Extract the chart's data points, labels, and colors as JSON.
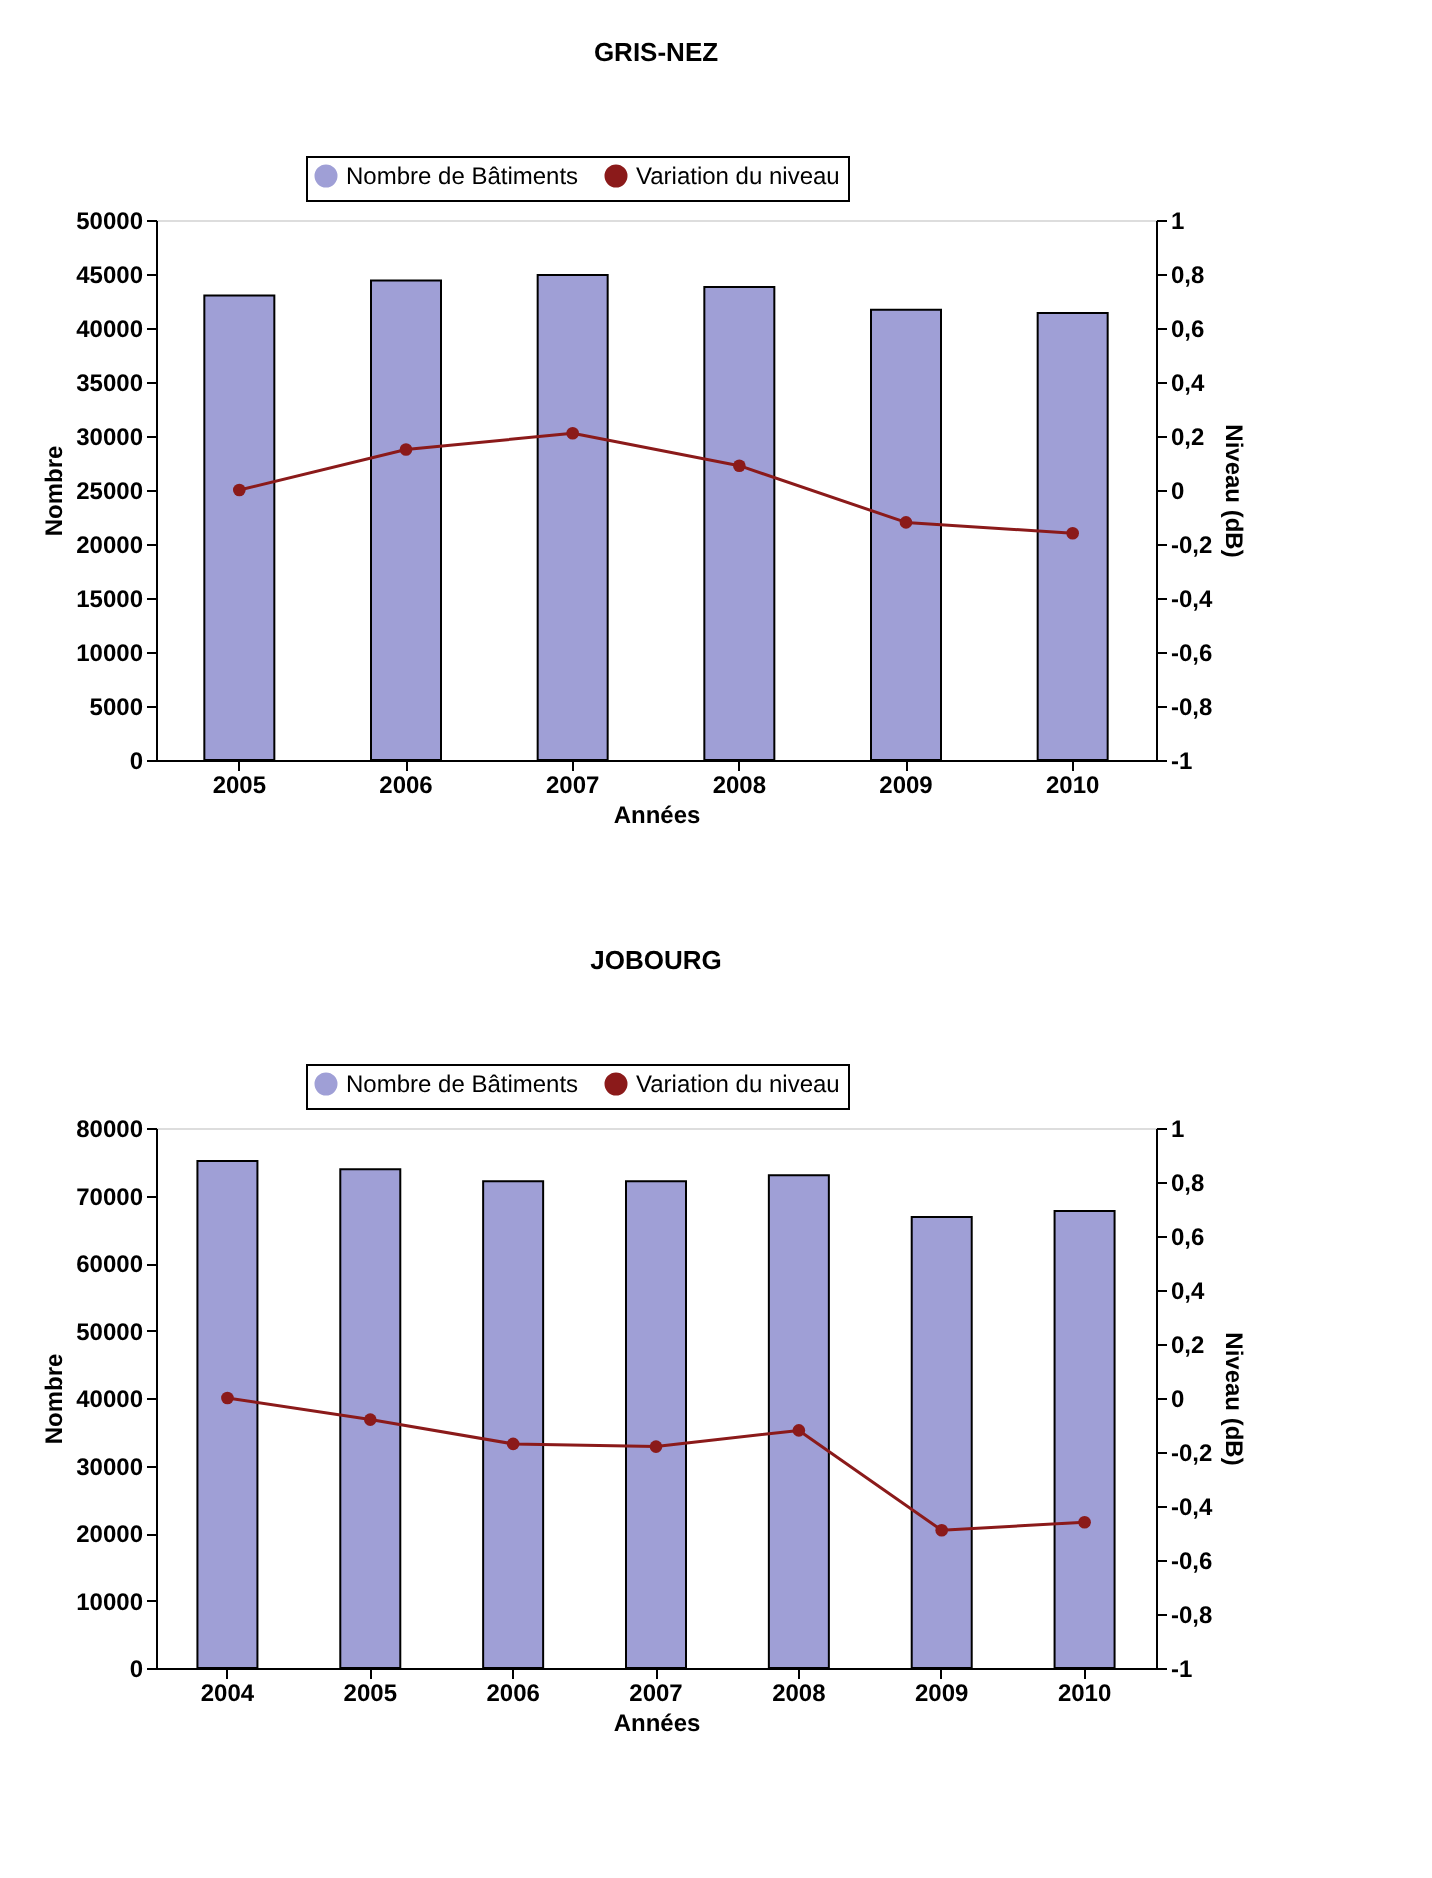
{
  "chart_data": [
    {
      "type": "bar",
      "title": "GRIS-NEZ",
      "xlabel": "Années",
      "ylabel": "Nombre",
      "y2label": "Niveau (dB)",
      "legend": "top",
      "grid": false,
      "marker": "circle",
      "line_style": "solid",
      "categories": [
        "2005",
        "2006",
        "2007",
        "2008",
        "2009",
        "2010"
      ],
      "series": [
        {
          "name": "Nombre de Bâtiments",
          "color": "#9f9fd6",
          "values": [
            43000,
            44400,
            44900,
            43800,
            41700,
            41400
          ]
        },
        {
          "name": "Variation du niveau",
          "type": "line",
          "axis": "y2",
          "color": "#8b1a1a",
          "values": [
            0,
            0.15,
            0.21,
            0.09,
            -0.12,
            -0.16
          ]
        }
      ],
      "ylim": [
        0,
        50000
      ],
      "yticks": [
        0,
        5000,
        10000,
        15000,
        20000,
        25000,
        30000,
        35000,
        40000,
        45000,
        50000
      ],
      "y2lim": [
        -1,
        1
      ],
      "y2ticks": [
        -1,
        {
          "value": -0.8,
          "label": "-0,8"
        },
        {
          "value": -0.6,
          "label": "-0,6"
        },
        {
          "value": -0.4,
          "label": "-0,4"
        },
        {
          "value": -0.2,
          "label": "-0,2"
        },
        0,
        {
          "value": 0.2,
          "label": "0,2"
        },
        {
          "value": 0.4,
          "label": "0,4"
        },
        {
          "value": 0.6,
          "label": "0,6"
        },
        {
          "value": 0.8,
          "label": "0,8"
        },
        1
      ]
    },
    {
      "type": "bar",
      "title": "JOBOURG",
      "xlabel": "Années",
      "ylabel": "Nombre",
      "y2label": "Niveau (dB)",
      "legend": "top",
      "grid": false,
      "marker": "circle",
      "line_style": "solid",
      "categories": [
        "2004",
        "2005",
        "2006",
        "2007",
        "2008",
        "2009",
        "2010"
      ],
      "series": [
        {
          "name": "Nombre de Bâtiments",
          "color": "#9f9fd6",
          "values": [
            75100,
            73900,
            72100,
            72100,
            73000,
            66800,
            67700
          ]
        },
        {
          "name": "Variation du niveau",
          "type": "line",
          "axis": "y2",
          "color": "#8b1a1a",
          "values": [
            0,
            -0.08,
            -0.17,
            -0.18,
            -0.12,
            -0.49,
            -0.46
          ]
        }
      ],
      "ylim": [
        0,
        80000
      ],
      "yticks": [
        0,
        10000,
        20000,
        30000,
        40000,
        50000,
        60000,
        70000,
        80000
      ],
      "y2lim": [
        -1,
        1
      ],
      "y2ticks": [
        -1,
        {
          "value": -0.8,
          "label": "-0,8"
        },
        {
          "value": -0.6,
          "label": "-0,6"
        },
        {
          "value": -0.4,
          "label": "-0,4"
        },
        {
          "value": -0.2,
          "label": "-0,2"
        },
        0,
        {
          "value": 0.2,
          "label": "0,2"
        },
        {
          "value": 0.4,
          "label": "0,4"
        },
        {
          "value": 0.6,
          "label": "0,6"
        },
        {
          "value": 0.8,
          "label": "0,8"
        },
        1
      ]
    }
  ]
}
